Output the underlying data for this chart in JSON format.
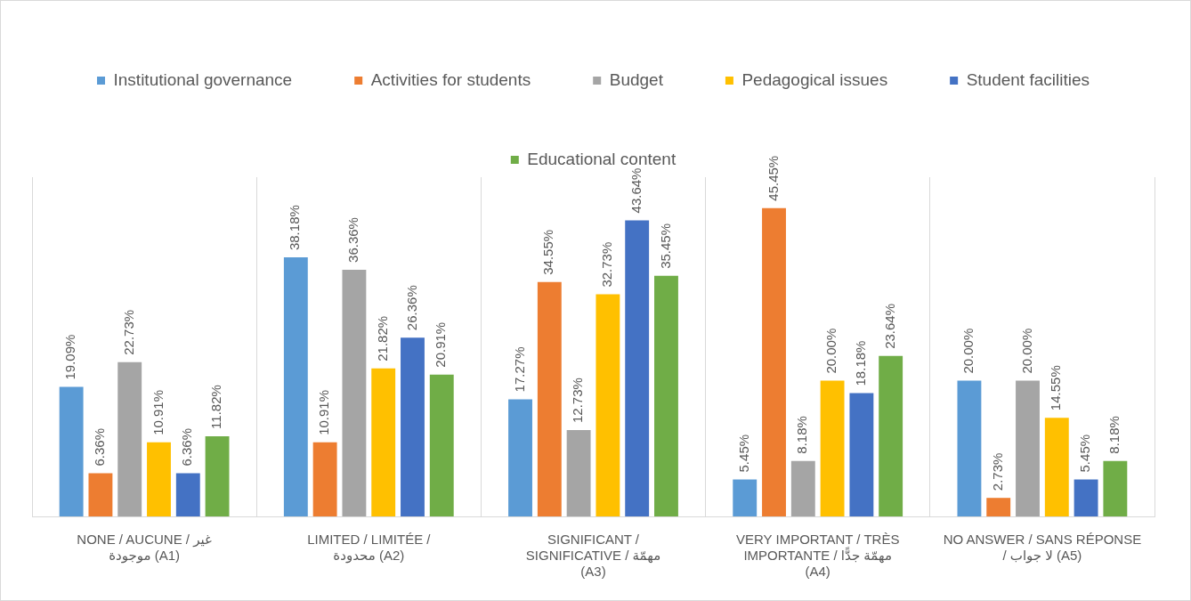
{
  "chart_data": {
    "type": "bar",
    "categories": [
      "NONE / AUCUNE / غير موجودة (A1)",
      "LIMITED / LIMITÉE / محدودة (A2)",
      "SIGNIFICANT / SIGNIFICATIVE / مهمّة (A3)",
      "VERY IMPORTANT / TRÈS IMPORTANTE / مهمّة جدًّا (A4)",
      "NO ANSWER / SANS RÉPONSE / لا جواب (A5)"
    ],
    "series": [
      {
        "name": "Institutional governance",
        "color": "#5b9bd5",
        "values": [
          19.09,
          38.18,
          17.27,
          5.45,
          20.0
        ],
        "value_labels": [
          "19.09%",
          "38.18%",
          "17.27%",
          "5.45%",
          "20.00%"
        ]
      },
      {
        "name": "Activities for students",
        "color": "#ed7d31",
        "values": [
          6.36,
          10.91,
          34.55,
          45.45,
          2.73
        ],
        "value_labels": [
          "6.36%",
          "10.91%",
          "34.55%",
          "45.45%",
          "2.73%"
        ]
      },
      {
        "name": "Budget",
        "color": "#a5a5a5",
        "values": [
          22.73,
          36.36,
          12.73,
          8.18,
          20.0
        ],
        "value_labels": [
          "22.73%",
          "36.36%",
          "12.73%",
          "8.18%",
          "20.00%"
        ]
      },
      {
        "name": "Pedagogical issues",
        "color": "#ffc000",
        "values": [
          10.91,
          21.82,
          32.73,
          20.0,
          14.55
        ],
        "value_labels": [
          "10.91%",
          "21.82%",
          "32.73%",
          "20.00%",
          "14.55%"
        ]
      },
      {
        "name": "Student facilities",
        "color": "#4472c4",
        "values": [
          6.36,
          26.36,
          43.64,
          18.18,
          5.45
        ],
        "value_labels": [
          "6.36%",
          "26.36%",
          "43.64%",
          "18.18%",
          "5.45%"
        ]
      },
      {
        "name": "Educational content",
        "color": "#70ad47",
        "values": [
          11.82,
          20.91,
          35.45,
          23.64,
          8.18
        ],
        "value_labels": [
          "11.82%",
          "20.91%",
          "35.45%",
          "23.64%",
          "8.18%"
        ]
      }
    ],
    "grid": "x",
    "legend": "top"
  }
}
